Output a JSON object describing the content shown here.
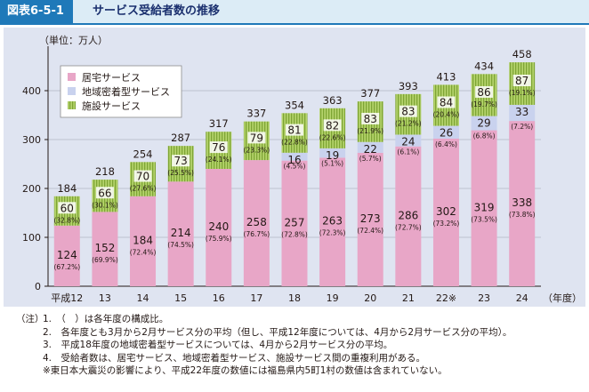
{
  "header": {
    "figure_number": "図表6-5-1",
    "title": "サービス受給者数の推移"
  },
  "notes": {
    "prefix": "（注）",
    "lines": [
      "1.　（　）は各年度の構成比。",
      "2.　各年度とも3月から2月サービス分の平均（但し、平成12年度については、4月から2月サービス分の平均）。",
      "3.　平成18年度の地域密着型サービスについては、4月から2月サービス分の平均。",
      "4.　受給者数は、居宅サービス、地域密着型サービス、施設サービス間の重複利用がある。",
      "※東日本大震災の影響により、平成22年度の数値には福島県内5町1村の数値は含まれていない。"
    ]
  },
  "chart_data": {
    "type": "bar",
    "stacked": true,
    "unit_label": "（単位：万人）",
    "xlabel_suffix": "（年度）",
    "categories": [
      "平成12",
      "13",
      "14",
      "15",
      "16",
      "17",
      "18",
      "19",
      "20",
      "21",
      "22※",
      "23",
      "24"
    ],
    "ylim": [
      0,
      480
    ],
    "yticks": [
      0,
      100,
      200,
      300,
      400
    ],
    "series": [
      {
        "name": "居宅サービス",
        "color": "#e8a6c7",
        "values": [
          124,
          152,
          184,
          214,
          240,
          258,
          257,
          263,
          273,
          286,
          302,
          319,
          338
        ],
        "percent_labels": [
          "(67.2%)",
          "(69.9%)",
          "(72.4%)",
          "(74.5%)",
          "(75.9%)",
          "(76.7%)",
          "(72.8%)",
          "(72.3%)",
          "(72.4%)",
          "(72.7%)",
          "(73.2%)",
          "(73.5%)",
          "(73.8%)"
        ]
      },
      {
        "name": "地域密着型サービス",
        "color": "#c9d2ee",
        "values": [
          null,
          null,
          null,
          null,
          null,
          null,
          16,
          19,
          22,
          24,
          26,
          29,
          33
        ],
        "percent_labels": [
          "",
          "",
          "",
          "",
          "",
          "",
          "(4.5%)",
          "(5.1%)",
          "(5.7%)",
          "(6.1%)",
          "(6.4%)",
          "(6.8%)",
          "(7.2%)"
        ]
      },
      {
        "name": "施設サービス",
        "color": "#9bc04a",
        "values": [
          60,
          66,
          70,
          73,
          76,
          79,
          81,
          82,
          83,
          83,
          84,
          86,
          87
        ],
        "percent_labels": [
          "(32.8%)",
          "(30.1%)",
          "(27.6%)",
          "(25.5%)",
          "(24.1%)",
          "(23.3%)",
          "(22.8%)",
          "(22.6%)",
          "(21.9%)",
          "(21.2%)",
          "(20.4%)",
          "(19.7%)",
          "(19.1%)"
        ]
      }
    ],
    "totals": [
      184,
      218,
      254,
      287,
      317,
      337,
      354,
      363,
      377,
      393,
      413,
      434,
      458
    ],
    "legend_position": "top-left"
  }
}
